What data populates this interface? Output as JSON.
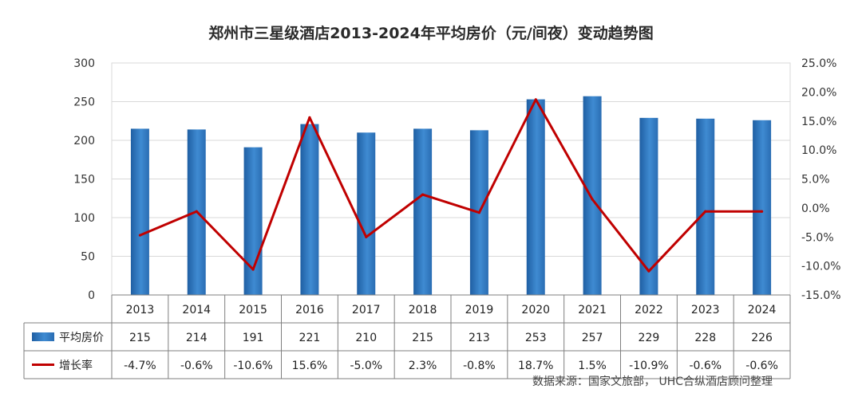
{
  "chart_data": {
    "type": "bar+line",
    "title": "郑州市三星级酒店2013-2024年平均房价（元/间夜）变动趋势图",
    "categories": [
      "2013",
      "2014",
      "2015",
      "2016",
      "2017",
      "2018",
      "2019",
      "2020",
      "2021",
      "2022",
      "2023",
      "2024"
    ],
    "series": [
      {
        "name": "平均房价",
        "type": "bar",
        "axis": "left",
        "values": [
          215,
          214,
          191,
          221,
          210,
          215,
          213,
          253,
          257,
          229,
          228,
          226
        ],
        "labels": [
          "215",
          "214",
          "191",
          "221",
          "210",
          "215",
          "213",
          "253",
          "257",
          "229",
          "228",
          "226"
        ],
        "color": "#2f6fb0"
      },
      {
        "name": "增长率",
        "type": "line",
        "axis": "right",
        "values": [
          -4.7,
          -0.6,
          -10.6,
          15.6,
          -5.0,
          2.3,
          -0.8,
          18.7,
          1.5,
          -10.9,
          -0.6,
          -0.6
        ],
        "labels": [
          "-4.7%",
          "-0.6%",
          "-10.6%",
          "15.6%",
          "-5.0%",
          "2.3%",
          "-0.8%",
          "18.7%",
          "1.5%",
          "-10.9%",
          "-0.6%",
          "-0.6%"
        ],
        "color": "#c00000"
      }
    ],
    "y_left": {
      "min": 0,
      "max": 300,
      "ticks": [
        0,
        50,
        100,
        150,
        200,
        250,
        300
      ],
      "tick_labels": [
        "0",
        "50",
        "100",
        "150",
        "200",
        "250",
        "300"
      ]
    },
    "y_right": {
      "min": -15,
      "max": 25,
      "ticks": [
        -15,
        -10,
        -5,
        0,
        5,
        10,
        15,
        20,
        25
      ],
      "tick_labels": [
        "-15.0%",
        "-10.0%",
        "-5.0%",
        "0.0%",
        "5.0%",
        "10.0%",
        "15.0%",
        "20.0%",
        "25.0%"
      ]
    },
    "grid": true,
    "data_table": true
  },
  "source_note": "数据来源：国家文旅部， UHC合纵酒店顾问整理",
  "colors": {
    "bar": "#2f6fb0",
    "line": "#c00000",
    "grid": "#d9d9d9",
    "axis": "#7f7f7f"
  }
}
